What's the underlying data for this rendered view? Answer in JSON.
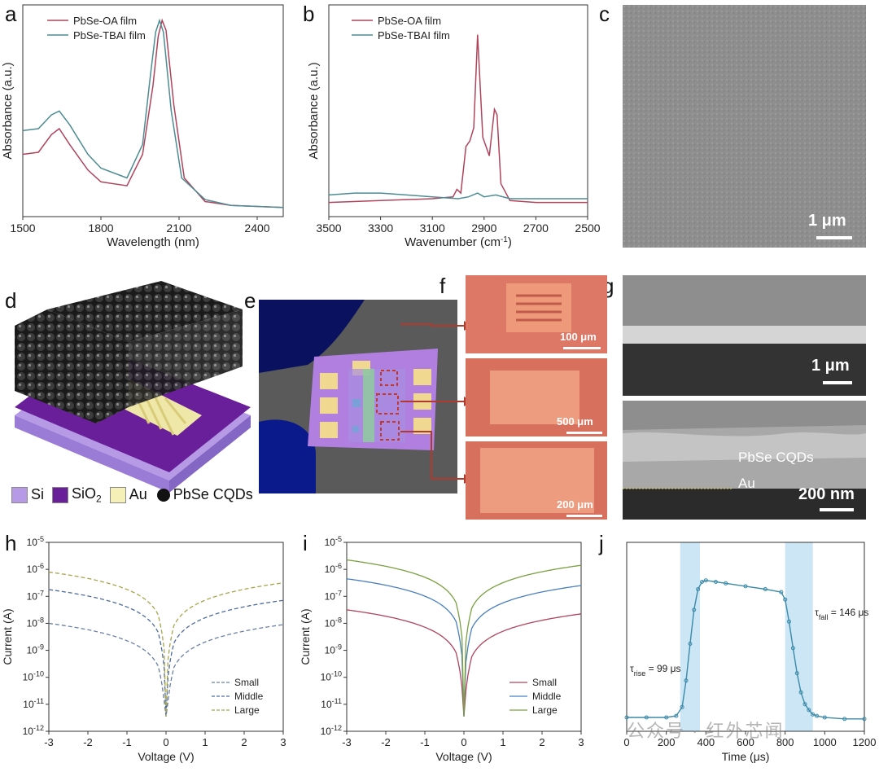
{
  "panels": {
    "a": "a",
    "b": "b",
    "c": "c",
    "d": "d",
    "e": "e",
    "f": "f",
    "g": "g",
    "h": "h",
    "i": "i",
    "j": "j"
  },
  "colors": {
    "oa": "#b0445c",
    "tbai": "#4d8c93",
    "small_a": "#b0445c",
    "small_h": "#6a7fa8",
    "middle_h": "#4f6aa0",
    "large_h": "#a5a54a",
    "small_i": "#b0445c",
    "middle_i": "#4a7fc0",
    "large_i": "#7aa040",
    "j_line": "#3a8aa8",
    "shade": "#bfe0f3"
  },
  "chart_data": [
    {
      "id": "a",
      "type": "line",
      "xlabel": "Wavelength (nm)",
      "ylabel": "Absorbance (a.u.)",
      "xlim": [
        1500,
        2500
      ],
      "xticks": [
        1500,
        1800,
        2100,
        2400
      ],
      "legend_position": "top-left",
      "series": [
        {
          "name": "PbSe-OA film",
          "x": [
            1500,
            1560,
            1610,
            1640,
            1680,
            1750,
            1800,
            1900,
            1960,
            2000,
            2020,
            2035,
            2050,
            2080,
            2120,
            2200,
            2300,
            2500
          ],
          "y": [
            0.3,
            0.31,
            0.4,
            0.43,
            0.35,
            0.22,
            0.16,
            0.14,
            0.3,
            0.65,
            0.9,
            0.98,
            0.93,
            0.55,
            0.18,
            0.06,
            0.04,
            0.03
          ]
        },
        {
          "name": "PbSe-TBAI film",
          "x": [
            1500,
            1560,
            1610,
            1640,
            1680,
            1750,
            1800,
            1900,
            1960,
            1990,
            2010,
            2025,
            2040,
            2070,
            2110,
            2200,
            2300,
            2500
          ],
          "y": [
            0.42,
            0.43,
            0.5,
            0.52,
            0.45,
            0.3,
            0.23,
            0.18,
            0.35,
            0.7,
            0.92,
            0.98,
            0.92,
            0.52,
            0.18,
            0.07,
            0.04,
            0.03
          ]
        }
      ]
    },
    {
      "id": "b",
      "type": "line",
      "xlabel": "Wavenumber (cm",
      "xlabel_sup": "-1",
      "xlabel_end": ")",
      "ylabel": "Absorbance (a.u.)",
      "xlim": [
        3500,
        2500
      ],
      "xticks": [
        3500,
        3300,
        3100,
        2900,
        2700,
        2500
      ],
      "legend_position": "top-left",
      "series": [
        {
          "name": "PbSe-OA film",
          "x": [
            3500,
            3300,
            3100,
            3020,
            3005,
            2990,
            2970,
            2955,
            2940,
            2925,
            2905,
            2880,
            2860,
            2850,
            2835,
            2800,
            2700,
            2500
          ],
          "y": [
            0.05,
            0.06,
            0.07,
            0.08,
            0.12,
            0.1,
            0.35,
            0.38,
            0.45,
            0.95,
            0.4,
            0.3,
            0.55,
            0.52,
            0.15,
            0.06,
            0.05,
            0.05
          ]
        },
        {
          "name": "PbSe-TBAI film",
          "x": [
            3500,
            3400,
            3300,
            3200,
            3100,
            3000,
            2960,
            2925,
            2900,
            2855,
            2800,
            2700,
            2500
          ],
          "y": [
            0.09,
            0.1,
            0.1,
            0.09,
            0.08,
            0.07,
            0.08,
            0.1,
            0.08,
            0.09,
            0.07,
            0.07,
            0.07
          ]
        }
      ]
    },
    {
      "id": "h",
      "type": "line",
      "xlabel": "Voltage (V)",
      "ylabel": "Current (A)",
      "xlim": [
        -3,
        3
      ],
      "xticks": [
        -3,
        -2,
        -1,
        0,
        1,
        2,
        3
      ],
      "ylim_log": [
        -12,
        -5
      ],
      "yticks_exp": [
        -12,
        -11,
        -10,
        -9,
        -8,
        -7,
        -6,
        -5
      ],
      "legend_position": "bottom-right",
      "series": [
        {
          "name": "Small",
          "dash": true,
          "at_neg3": -8.0,
          "at_pos3": -8.05
        },
        {
          "name": "Middle",
          "dash": true,
          "at_neg3": -6.75,
          "at_pos3": -7.15
        },
        {
          "name": "Large",
          "dash": true,
          "at_neg3": -6.1,
          "at_pos3": -6.5
        }
      ]
    },
    {
      "id": "i",
      "type": "line",
      "xlabel": "Voltage (V)",
      "ylabel": "Current (A)",
      "xlim": [
        -3,
        3
      ],
      "xticks": [
        -3,
        -2,
        -1,
        0,
        1,
        2,
        3
      ],
      "ylim_log": [
        -12,
        -5
      ],
      "yticks_exp": [
        -12,
        -11,
        -10,
        -9,
        -8,
        -7,
        -6,
        -5
      ],
      "legend_position": "bottom-right",
      "series": [
        {
          "name": "Small",
          "dash": false,
          "at_neg3": -7.5,
          "at_pos3": -7.65
        },
        {
          "name": "Middle",
          "dash": false,
          "at_neg3": -6.35,
          "at_pos3": -6.6
        },
        {
          "name": "Large",
          "dash": false,
          "at_neg3": -5.65,
          "at_pos3": -5.85
        }
      ]
    },
    {
      "id": "j",
      "type": "scatter",
      "xlabel": "Time (μs)",
      "xlim": [
        0,
        1200
      ],
      "xticks": [
        0,
        200,
        400,
        600,
        800,
        1000,
        1200
      ],
      "rise_label": "τ",
      "rise_sub": "rise",
      "rise_value": " = 99 μs",
      "fall_label": "τ",
      "fall_sub": "fall",
      "fall_value": " = 146 μs",
      "shaded_regions": [
        [
          270,
          370
        ],
        [
          800,
          940
        ]
      ],
      "x": [
        0,
        100,
        200,
        250,
        280,
        300,
        320,
        340,
        360,
        380,
        400,
        450,
        500,
        600,
        700,
        780,
        800,
        820,
        840,
        860,
        880,
        900,
        920,
        940,
        960,
        1000,
        1100,
        1200
      ],
      "y": [
        0.05,
        0.05,
        0.05,
        0.06,
        0.12,
        0.3,
        0.55,
        0.78,
        0.92,
        0.97,
        0.98,
        0.97,
        0.96,
        0.94,
        0.92,
        0.9,
        0.85,
        0.7,
        0.52,
        0.35,
        0.22,
        0.14,
        0.1,
        0.07,
        0.06,
        0.05,
        0.04,
        0.04
      ]
    }
  ],
  "d_legend": {
    "si": "Si",
    "sio2": "SiO",
    "sio2_sub": "2",
    "au": "Au",
    "cqd": "PbSe CQDs"
  },
  "scalebars": {
    "c": "1 μm",
    "f1": "100 μm",
    "f2": "500 μm",
    "f3": "200 μm",
    "g1": "1 μm",
    "g2": "200 nm"
  },
  "g_labels": {
    "cqds": "PbSe CQDs",
    "au": "Au"
  },
  "watermark": "公众号 · 红外芯闻"
}
